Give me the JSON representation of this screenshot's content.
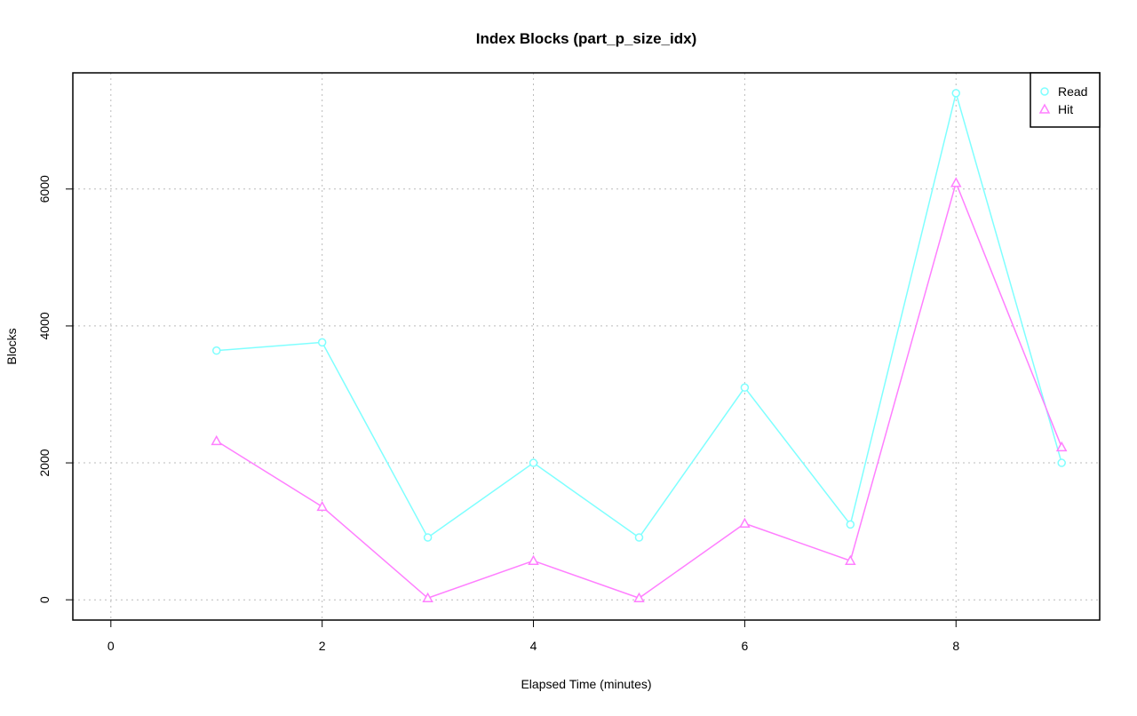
{
  "chart_data": {
    "type": "line",
    "title": "Index Blocks (part_p_size_idx)",
    "xlabel": "Elapsed Time (minutes)",
    "ylabel": "Blocks",
    "xlim": [
      -0.36,
      9.36
    ],
    "ylim": [
      -296,
      7697
    ],
    "xticks": [
      0,
      2,
      4,
      6,
      8
    ],
    "yticks": [
      0,
      2000,
      4000,
      6000
    ],
    "grid": true,
    "legend_position": "top-right",
    "x": [
      1,
      2,
      3,
      4,
      5,
      6,
      7,
      8,
      9
    ],
    "series": [
      {
        "name": "Read",
        "color": "#7FFFFF",
        "marker": "circle",
        "values": [
          3640,
          3760,
          910,
          2000,
          910,
          3100,
          1100,
          7400,
          2000
        ]
      },
      {
        "name": "Hit",
        "color": "#FF7FFF",
        "marker": "triangle",
        "values": [
          2320,
          1360,
          25,
          570,
          25,
          1115,
          570,
          6090,
          2230
        ]
      }
    ]
  }
}
